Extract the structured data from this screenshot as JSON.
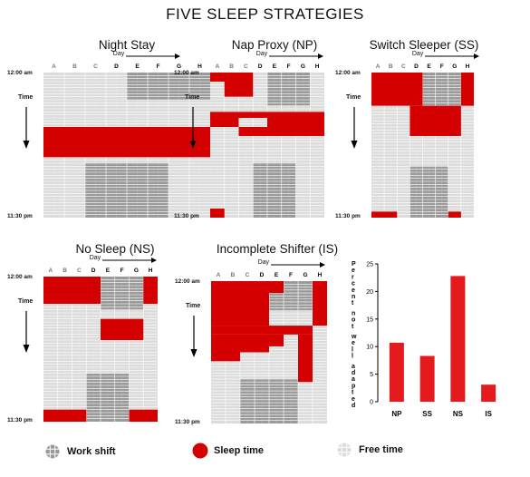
{
  "title": "FIVE SLEEP STRATEGIES",
  "labels": {
    "day": "Day",
    "time": "Time",
    "start": "12:00 am",
    "end": "11:30 pm"
  },
  "columns": [
    "A",
    "B",
    "C",
    "D",
    "E",
    "F",
    "G",
    "H"
  ],
  "colors": {
    "sleep": "#d40000",
    "grid_bg": "#dcdcdc",
    "work_bg": "#9a9a9a",
    "grid_line": "#ffffff",
    "bar": "#e41a1c"
  },
  "panels": [
    {
      "key": "night-stay",
      "title": "Night Stay",
      "sleep": [
        [
          0,
          8,
          18,
          28
        ]
      ],
      "work": [
        [
          4,
          8,
          0,
          9
        ],
        [
          2,
          6,
          30,
          48
        ]
      ]
    },
    {
      "key": "nap-proxy",
      "title": "Nap Proxy (NP)",
      "sleep": [
        [
          0,
          3,
          0,
          3
        ],
        [
          1,
          3,
          3,
          8
        ],
        [
          0,
          8,
          13,
          15
        ],
        [
          0,
          2,
          15,
          18
        ],
        [
          4,
          8,
          15,
          18
        ],
        [
          2,
          8,
          18,
          21
        ],
        [
          0,
          1,
          45,
          48
        ]
      ],
      "work": [
        [
          4,
          7,
          0,
          11
        ],
        [
          3,
          6,
          30,
          48
        ]
      ]
    },
    {
      "key": "switch-sleeper",
      "title": "Switch Sleeper (SS)",
      "sleep": [
        [
          0,
          4,
          0,
          11
        ],
        [
          7,
          8,
          0,
          11
        ],
        [
          3,
          4,
          11,
          21
        ],
        [
          4,
          7,
          11,
          21
        ],
        [
          0,
          2,
          46,
          48
        ],
        [
          6,
          7,
          46,
          48
        ]
      ],
      "work": [
        [
          4,
          7,
          0,
          11
        ],
        [
          3,
          6,
          31,
          48
        ]
      ]
    },
    {
      "key": "no-sleep",
      "title": "No Sleep (NS)",
      "sleep": [
        [
          0,
          4,
          0,
          9
        ],
        [
          7,
          8,
          0,
          9
        ],
        [
          4,
          7,
          14,
          21
        ],
        [
          0,
          3,
          44,
          48
        ],
        [
          6,
          8,
          44,
          48
        ]
      ],
      "work": [
        [
          4,
          7,
          0,
          11
        ],
        [
          3,
          6,
          32,
          48
        ]
      ]
    },
    {
      "key": "incomplete-shifter",
      "title": "Incomplete Shifter (IS)",
      "sleep": [
        [
          0,
          4,
          0,
          15
        ],
        [
          4,
          5,
          0,
          4
        ],
        [
          7,
          8,
          0,
          15
        ],
        [
          0,
          7,
          15,
          18
        ],
        [
          0,
          4,
          18,
          24
        ],
        [
          4,
          5,
          18,
          22
        ],
        [
          0,
          2,
          24,
          27
        ],
        [
          6,
          7,
          18,
          34
        ]
      ],
      "work": [
        [
          4,
          7,
          0,
          10
        ],
        [
          2,
          6,
          33,
          48
        ]
      ]
    }
  ],
  "chart_data": {
    "type": "bar",
    "categories": [
      "NP",
      "SS",
      "NS",
      "IS"
    ],
    "values": [
      10.7,
      8.3,
      22.8,
      3.1
    ],
    "xlabel": "",
    "ylabel": "Percent not well adapted",
    "ylim": [
      0,
      25
    ],
    "yticks": [
      0,
      5,
      10,
      15,
      20,
      25
    ],
    "grid": false
  },
  "legend": [
    {
      "key": "work",
      "label": "Work shift"
    },
    {
      "key": "sleep",
      "label": "Sleep time"
    },
    {
      "key": "free",
      "label": "Free time"
    }
  ]
}
